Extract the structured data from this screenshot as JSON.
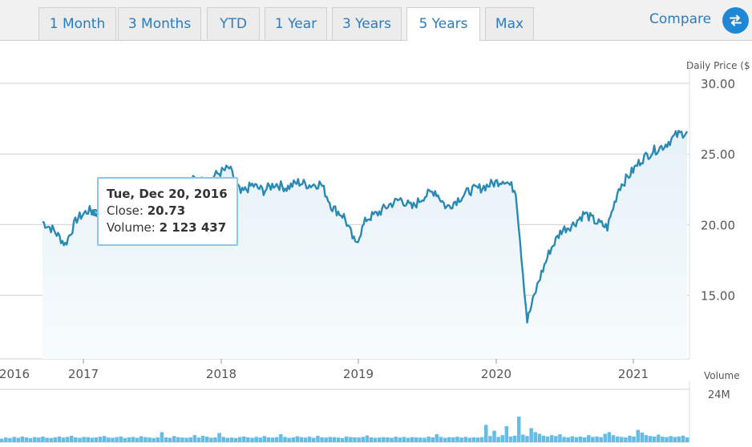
{
  "tabs": [
    {
      "label": "1 Month",
      "active": false
    },
    {
      "label": "3 Months",
      "active": false
    },
    {
      "label": "YTD",
      "active": false
    },
    {
      "label": "1 Year",
      "active": false
    },
    {
      "label": "3 Years",
      "active": false
    },
    {
      "label": "5 Years",
      "active": true
    },
    {
      "label": "Max",
      "active": false
    }
  ],
  "compare": {
    "label": "Compare",
    "icon": "swap-arrows-icon"
  },
  "colors": {
    "accent": "#2a7cbf",
    "line": "#2a8ab3",
    "area": "#e6f1f8",
    "volume": "#64bde6"
  },
  "tooltip": {
    "date": "Tue, Dec 20, 2016",
    "close_label": "Close:",
    "close_value": "20.73",
    "volume_label": "Volume:",
    "volume_value": "2 123 437"
  },
  "chart_data": [
    {
      "type": "line",
      "title": "",
      "ylabel": "Daily Price ($",
      "ylim": [
        10.5,
        30
      ],
      "yticks": [
        "30.00",
        "25.00",
        "20.00",
        "15.00"
      ],
      "xticks": [
        "2016",
        "2017",
        "2018",
        "2019",
        "2020",
        "2021"
      ],
      "grid": true,
      "series": [
        {
          "points": [
            [
              "2016-04",
              20.2
            ],
            [
              "2016-05",
              19.6
            ],
            [
              "2016-06",
              18.6
            ],
            [
              "2016-07",
              20.4
            ],
            [
              "2016-08",
              21.0
            ],
            [
              "2016-09",
              20.8
            ],
            [
              "2016-10",
              20.6
            ],
            [
              "2016-11",
              19.2
            ],
            [
              "2016-12",
              20.7
            ],
            [
              "2017-01",
              20.9
            ],
            [
              "2017-02",
              20.4
            ],
            [
              "2017-03",
              20.9
            ],
            [
              "2017-04",
              20.2
            ],
            [
              "2017-05",
              20.9
            ],
            [
              "2017-06",
              21.4
            ],
            [
              "2017-07",
              21.0
            ],
            [
              "2017-08",
              22.4
            ],
            [
              "2017-09",
              22.8
            ],
            [
              "2017-10",
              23.2
            ],
            [
              "2017-11",
              23.0
            ],
            [
              "2017-12",
              23.6
            ],
            [
              "2018-01",
              24.0
            ],
            [
              "2018-02",
              22.2
            ],
            [
              "2018-03",
              22.8
            ],
            [
              "2018-04",
              22.4
            ],
            [
              "2018-05",
              22.9
            ],
            [
              "2018-06",
              22.6
            ],
            [
              "2018-07",
              23.0
            ],
            [
              "2018-08",
              22.8
            ],
            [
              "2018-09",
              22.9
            ],
            [
              "2018-10",
              21.2
            ],
            [
              "2018-11",
              20.6
            ],
            [
              "2018-12",
              18.6
            ],
            [
              "2019-01",
              20.4
            ],
            [
              "2019-02",
              20.8
            ],
            [
              "2019-03",
              21.4
            ],
            [
              "2019-04",
              21.8
            ],
            [
              "2019-05",
              21.2
            ],
            [
              "2019-06",
              22.0
            ],
            [
              "2019-07",
              22.4
            ],
            [
              "2019-08",
              21.2
            ],
            [
              "2019-09",
              21.8
            ],
            [
              "2019-10",
              22.4
            ],
            [
              "2019-11",
              22.6
            ],
            [
              "2019-12",
              22.9
            ],
            [
              "2020-01",
              23.2
            ],
            [
              "2020-02",
              22.4
            ],
            [
              "2020-03",
              13.2
            ],
            [
              "2020-04",
              16.0
            ],
            [
              "2020-05",
              18.2
            ],
            [
              "2020-06",
              19.6
            ],
            [
              "2020-07",
              20.0
            ],
            [
              "2020-08",
              20.8
            ],
            [
              "2020-09",
              20.2
            ],
            [
              "2020-10",
              19.8
            ],
            [
              "2020-11",
              22.6
            ],
            [
              "2020-12",
              23.6
            ],
            [
              "2021-01",
              24.6
            ],
            [
              "2021-02",
              25.2
            ],
            [
              "2021-03",
              25.6
            ],
            [
              "2021-04",
              26.3
            ],
            [
              "2021-05",
              26.6
            ]
          ]
        }
      ]
    },
    {
      "type": "bar",
      "title": "",
      "ylabel": "Volume",
      "ymax_label": "24M",
      "ylim": [
        0,
        24000000
      ],
      "values": [
        1.6,
        2.1,
        1.9,
        2.4,
        2.0,
        2.6,
        2.2,
        1.8,
        2.3,
        2.1,
        2.5,
        2.0,
        1.9,
        2.2,
        2.6,
        2.1,
        2.4,
        2.9,
        2.2,
        2.0,
        2.4,
        2.3,
        2.0,
        2.2,
        2.5,
        2.8,
        2.1,
        2.0,
        2.3,
        2.6,
        1.9,
        2.2,
        2.4,
        2.0,
        2.7,
        2.3,
        2.1,
        1.9,
        2.2,
        4.6,
        2.2,
        2.0,
        2.8,
        2.3,
        2.1,
        2.0,
        2.2,
        3.2,
        2.1,
        2.9,
        2.5,
        2.0,
        2.2,
        4.2,
        2.4,
        2.0,
        2.1,
        1.9,
        2.3,
        2.6,
        2.2,
        2.0,
        2.4,
        2.1,
        2.8,
        2.2,
        2.1,
        2.3,
        3.6,
        2.4,
        2.0,
        2.2,
        2.7,
        2.3,
        2.1,
        2.5,
        2.0,
        2.9,
        2.2,
        2.1,
        2.4,
        2.3,
        2.1,
        1.9,
        2.6,
        2.3,
        2.2,
        2.1,
        2.4,
        3.1,
        2.2,
        2.0,
        2.1,
        2.3,
        2.2,
        2.0,
        2.5,
        2.1,
        2.4,
        2.0,
        2.3,
        2.2,
        2.1,
        2.0,
        2.6,
        2.2,
        3.6,
        2.4,
        2.0,
        2.3,
        2.2,
        2.5,
        2.1,
        2.4,
        2.0,
        2.2,
        2.1,
        2.3,
        7.9,
        2.8,
        5.2,
        2.4,
        3.2,
        7.3,
        2.6,
        3.0,
        11.6,
        3.4,
        2.8,
        6.4,
        4.6,
        3.8,
        3.0,
        2.6,
        3.2,
        2.8,
        3.6,
        2.4,
        2.2,
        2.7,
        2.3,
        2.6,
        2.2,
        3.2,
        2.4,
        2.6,
        2.3,
        3.8,
        4.6,
        3.2,
        2.6,
        2.4,
        2.2,
        3.0,
        2.6,
        5.6,
        4.4,
        3.2,
        2.8,
        2.6,
        3.4,
        2.5,
        2.3,
        2.8,
        2.4,
        2.6,
        3.0,
        2.2
      ]
    }
  ]
}
